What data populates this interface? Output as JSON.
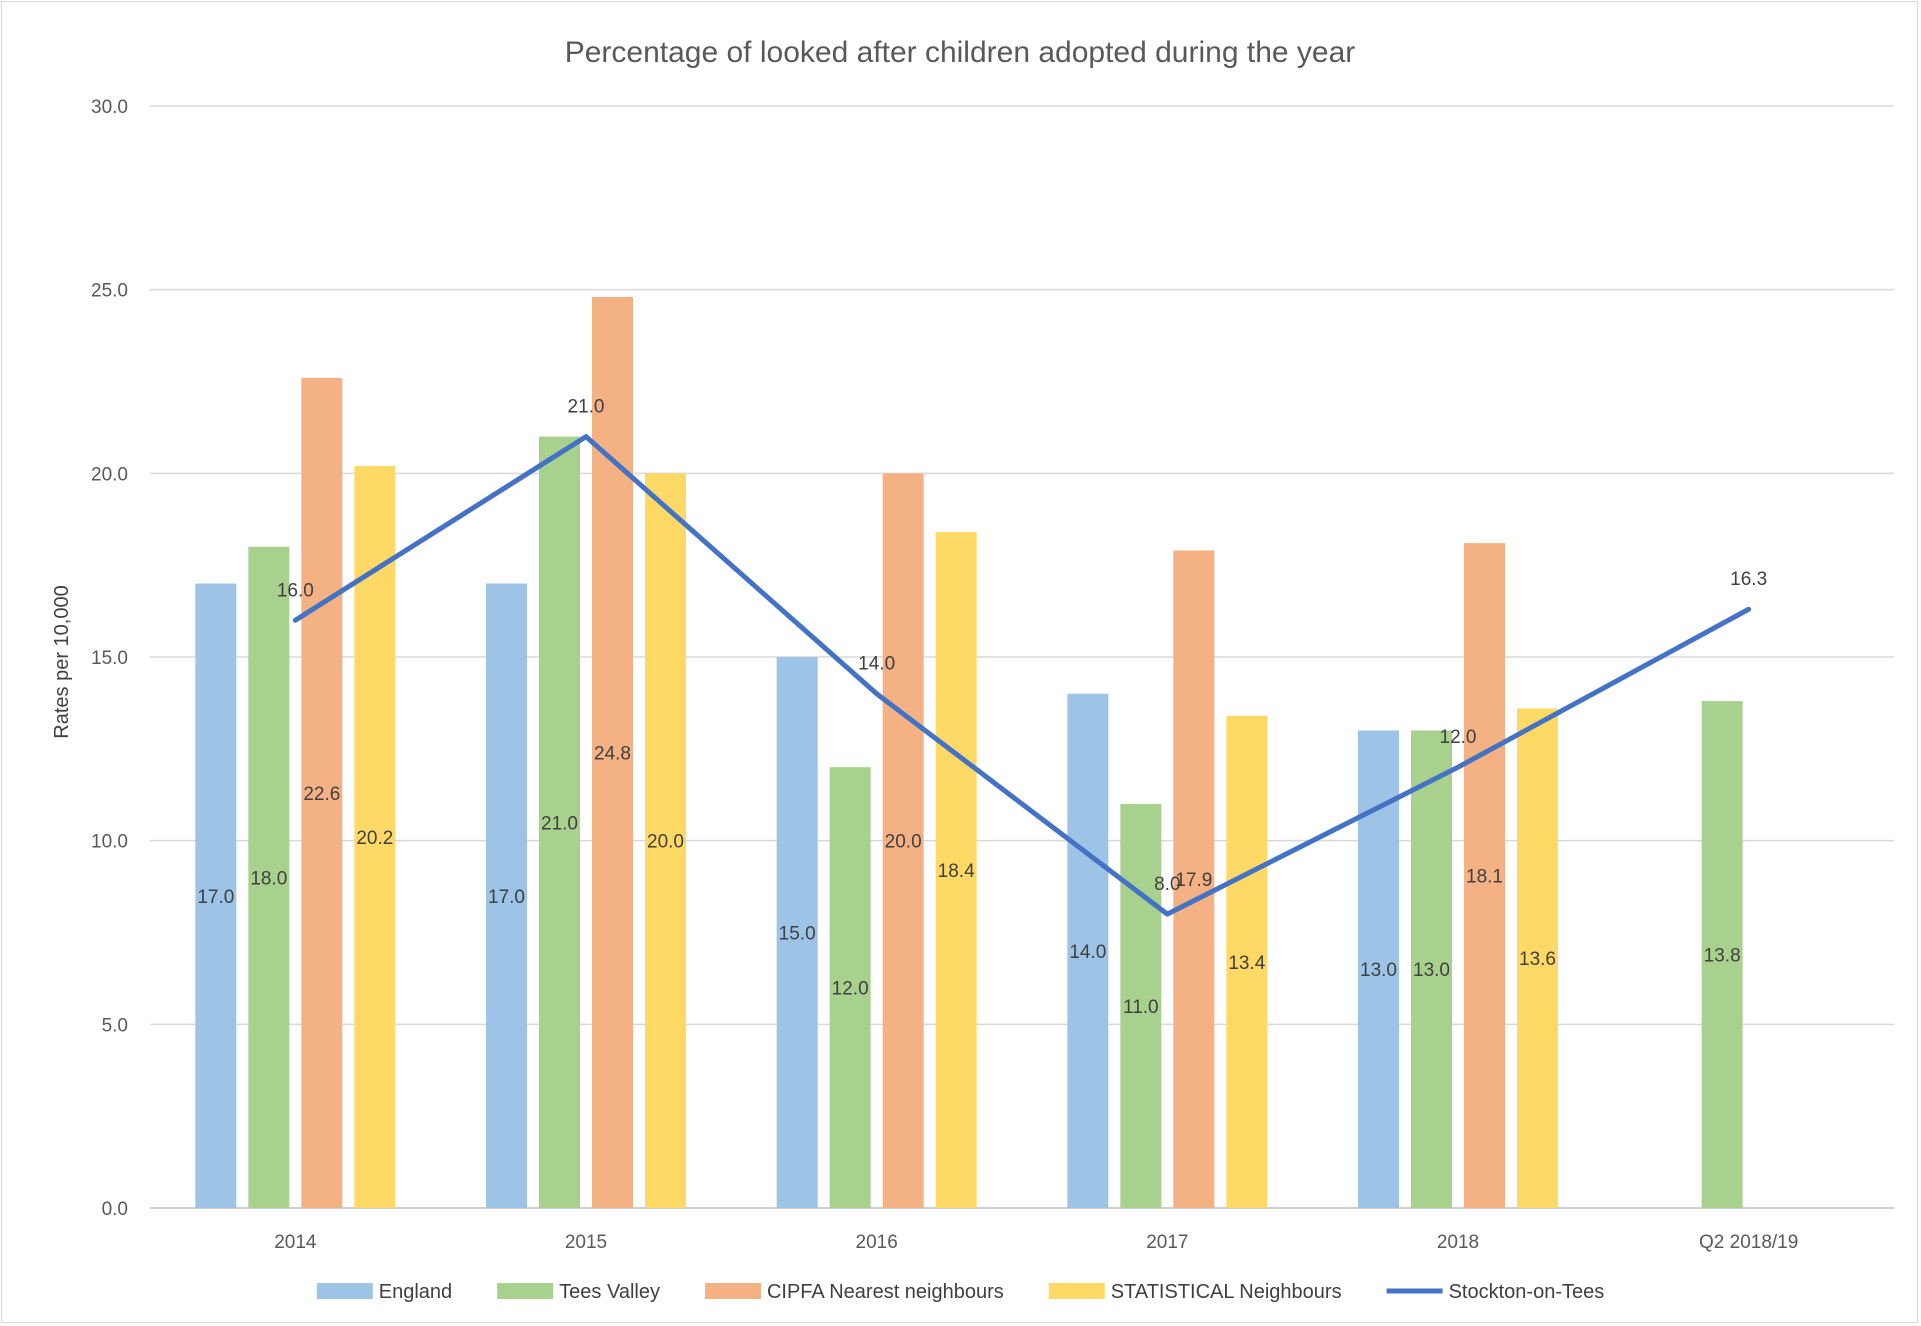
{
  "chart_data": {
    "type": "bar",
    "title": "Percentage of looked after children adopted during the year",
    "xlabel": "",
    "ylabel": "Rates per 10,000",
    "ylim": [
      0,
      30
    ],
    "y_ticks": [
      "0.0",
      "5.0",
      "10.0",
      "15.0",
      "20.0",
      "25.0",
      "30.0"
    ],
    "categories": [
      "2014",
      "2015",
      "2016",
      "2017",
      "2018",
      "Q2 2018/19"
    ],
    "grid": true,
    "legend_position": "bottom",
    "series": [
      {
        "name": "England",
        "type": "bar",
        "color": "#9dc3e6",
        "values": [
          17.0,
          17.0,
          15.0,
          14.0,
          13.0,
          null
        ],
        "labels": [
          "17.0",
          "17.0",
          "15.0",
          "14.0",
          "13.0",
          ""
        ]
      },
      {
        "name": "Tees Valley",
        "type": "bar",
        "color": "#a9d18e",
        "values": [
          18.0,
          21.0,
          12.0,
          11.0,
          13.0,
          13.8
        ],
        "labels": [
          "18.0",
          "21.0",
          "12.0",
          "11.0",
          "13.0",
          "13.8"
        ]
      },
      {
        "name": "CIPFA Nearest neighbours",
        "type": "bar",
        "color": "#f4b183",
        "values": [
          22.6,
          24.8,
          20.0,
          17.9,
          18.1,
          null
        ],
        "labels": [
          "22.6",
          "24.8",
          "20.0",
          "17.9",
          "18.1",
          ""
        ]
      },
      {
        "name": "STATISTICAL Neighbours",
        "type": "bar",
        "color": "#ffd966",
        "values": [
          20.2,
          20.0,
          18.4,
          13.4,
          13.6,
          null
        ],
        "labels": [
          "20.2",
          "20.0",
          "18.4",
          "13.4",
          "13.6",
          ""
        ]
      },
      {
        "name": "Stockton-on-Tees",
        "type": "line",
        "color": "#4472c4",
        "values": [
          16.0,
          21.0,
          14.0,
          8.0,
          12.0,
          16.3
        ],
        "labels": [
          "16.0",
          "21.0",
          "14.0",
          "8.0",
          "12.0",
          "16.3"
        ]
      }
    ]
  }
}
